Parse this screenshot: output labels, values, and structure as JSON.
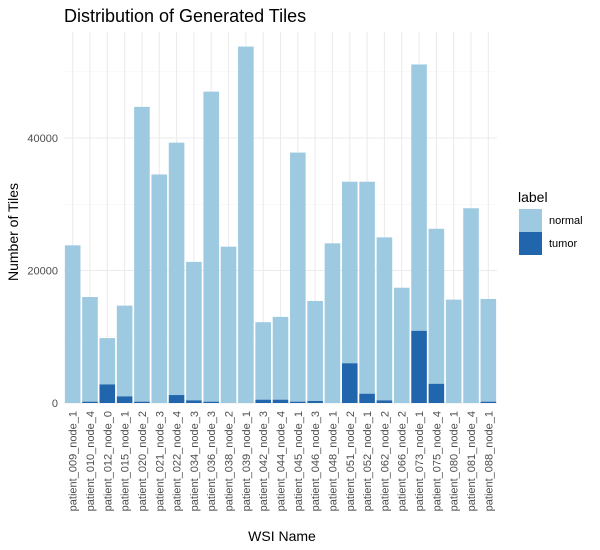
{
  "chart_data": {
    "type": "bar",
    "stacked": true,
    "title": "Distribution of Generated Tiles",
    "xlabel": "WSI Name",
    "ylabel": "Number of Tiles",
    "ylim": [
      0,
      56000
    ],
    "yticks": [
      0,
      20000,
      40000
    ],
    "ytick_labels": [
      "0",
      "20000",
      "40000"
    ],
    "grid": true,
    "legend": {
      "title": "label",
      "position": "right"
    },
    "categories": [
      "patient_009_node_1",
      "patient_010_node_4",
      "patient_012_node_0",
      "patient_015_node_1",
      "patient_020_node_2",
      "patient_021_node_3",
      "patient_022_node_4",
      "patient_034_node_3",
      "patient_036_node_3",
      "patient_038_node_2",
      "patient_039_node_1",
      "patient_042_node_3",
      "patient_044_node_4",
      "patient_045_node_1",
      "patient_046_node_3",
      "patient_048_node_1",
      "patient_051_node_2",
      "patient_052_node_1",
      "patient_062_node_2",
      "patient_066_node_2",
      "patient_073_node_1",
      "patient_075_node_4",
      "patient_080_node_1",
      "patient_081_node_4",
      "patient_088_node_1"
    ],
    "series": [
      {
        "name": "normal",
        "color": "#9ecae1",
        "values": [
          23800,
          15800,
          7000,
          13700,
          44500,
          34500,
          38100,
          20900,
          46800,
          23600,
          53800,
          11700,
          12500,
          37600,
          15100,
          24100,
          27400,
          32000,
          24600,
          17400,
          40200,
          23400,
          15600,
          29400,
          15500
        ]
      },
      {
        "name": "tumor",
        "color": "#2166ac",
        "values": [
          0,
          200,
          2800,
          1000,
          200,
          0,
          1200,
          400,
          200,
          0,
          0,
          500,
          500,
          200,
          300,
          0,
          6000,
          1400,
          400,
          0,
          10900,
          2900,
          0,
          0,
          200
        ]
      }
    ]
  }
}
